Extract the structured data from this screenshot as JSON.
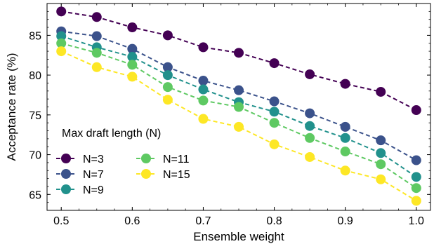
{
  "chart_data": {
    "type": "line",
    "xlabel": "Ensemble weight",
    "ylabel": "Acceptance rate (%)",
    "xlim": [
      0.48,
      1.02
    ],
    "ylim": [
      63.0,
      89.0
    ],
    "x_ticks": [
      0.5,
      0.6,
      0.7,
      0.8,
      0.9,
      1.0
    ],
    "x_tick_labels": [
      "0.5",
      "0.6",
      "0.7",
      "0.8",
      "0.9",
      "1.0"
    ],
    "y_ticks": [
      65,
      70,
      75,
      80,
      85
    ],
    "y_tick_labels": [
      "65",
      "70",
      "75",
      "80",
      "85"
    ],
    "grid": false,
    "legend": {
      "title": "Max draft length (N)",
      "placement": "bottom-left",
      "columns": 2
    },
    "x": [
      0.5,
      0.55,
      0.6,
      0.65,
      0.7,
      0.75,
      0.8,
      0.85,
      0.9,
      0.95,
      1.0
    ],
    "series": [
      {
        "name": "N=3",
        "color": "#440154",
        "values": [
          88.0,
          87.3,
          86.0,
          85.0,
          83.5,
          82.8,
          81.5,
          80.1,
          78.9,
          77.9,
          75.6
        ]
      },
      {
        "name": "N=7",
        "color": "#3b528b",
        "values": [
          85.5,
          84.9,
          83.3,
          81.0,
          79.3,
          78.1,
          76.7,
          75.2,
          73.5,
          71.8,
          69.3
        ]
      },
      {
        "name": "N=9",
        "color": "#21918c",
        "values": [
          84.9,
          83.5,
          82.3,
          80.0,
          78.2,
          76.6,
          75.4,
          73.6,
          72.1,
          70.2,
          67.2
        ]
      },
      {
        "name": "N=11",
        "color": "#5ec962",
        "values": [
          84.0,
          82.8,
          81.3,
          78.5,
          76.8,
          76.0,
          74.0,
          72.1,
          70.4,
          68.8,
          65.8
        ]
      },
      {
        "name": "N=15",
        "color": "#fde725",
        "values": [
          83.0,
          81.0,
          79.8,
          76.9,
          74.5,
          73.5,
          71.3,
          69.7,
          68.0,
          66.9,
          64.2
        ]
      }
    ]
  }
}
